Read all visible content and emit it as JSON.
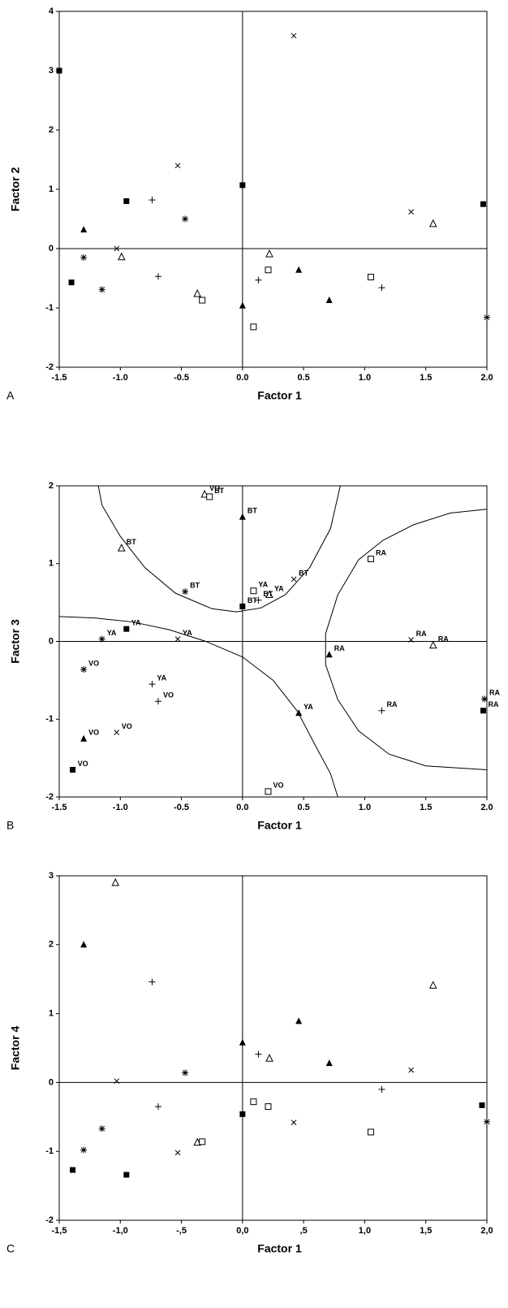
{
  "chart_data": [
    {
      "type": "scatter",
      "panel": "A",
      "xlabel": "Factor 1",
      "ylabel": "Factor 2",
      "xlim": [
        -1.5,
        2.0
      ],
      "ylim": [
        -2,
        4
      ],
      "xticks": [
        -1.5,
        {
          "value": -1.0,
          "label": "-1.0"
        },
        -0.5,
        {
          "value": 0.0,
          "label": "0.0"
        },
        0.5,
        {
          "value": 1.0,
          "label": "1.0"
        },
        1.5,
        {
          "value": 2.0,
          "label": "2.0"
        }
      ],
      "yticks": [
        -2,
        -1,
        0,
        1,
        2,
        3,
        4
      ],
      "series": [
        {
          "marker": "filled-square",
          "color": "#000000",
          "x": [
            -1.5,
            -0.95,
            -1.4,
            0,
            1.97
          ],
          "values": [
            3.0,
            0.8,
            -0.57,
            1.07,
            0.75
          ]
        },
        {
          "marker": "cross",
          "color": "#000000",
          "x": [
            0.42,
            -0.53,
            -1.03,
            1.38
          ],
          "values": [
            3.59,
            1.4,
            0.0,
            0.62
          ]
        },
        {
          "marker": "filled-triangle",
          "color": "#000000",
          "x": [
            -1.3,
            0,
            0.46,
            0.71
          ],
          "values": [
            0.32,
            -0.96,
            -0.36,
            -0.87
          ]
        },
        {
          "marker": "open-triangle",
          "color": "#000000",
          "x": [
            -0.99,
            -0.37,
            0.22,
            1.56
          ],
          "values": [
            -0.14,
            -0.76,
            -0.09,
            0.42
          ]
        },
        {
          "marker": "open-square",
          "color": "#000000",
          "x": [
            -0.33,
            0.21,
            0.09,
            1.05
          ],
          "values": [
            -0.87,
            -0.36,
            -1.32,
            -0.48
          ]
        },
        {
          "marker": "plus",
          "color": "#000000",
          "x": [
            -0.74,
            -0.69,
            0.13,
            1.14
          ],
          "values": [
            0.82,
            -0.47,
            -0.53,
            -0.66
          ]
        },
        {
          "marker": "asterisk",
          "color": "#000000",
          "x": [
            -1.3,
            -1.15,
            -0.47,
            2.0
          ],
          "values": [
            -0.15,
            -0.69,
            0.5,
            -1.16
          ]
        }
      ]
    },
    {
      "type": "scatter",
      "panel": "B",
      "xlabel": "Factor 1",
      "ylabel": "Factor 3",
      "xlim": [
        -1.5,
        2.0
      ],
      "ylim": [
        -2,
        2
      ],
      "xticks": [
        -1.5,
        {
          "value": -1.0,
          "label": "-1.0"
        },
        -0.5,
        {
          "value": 0.0,
          "label": "0.0"
        },
        0.5,
        {
          "value": 1.0,
          "label": "1.0"
        },
        1.5,
        {
          "value": 2.0,
          "label": "2.0"
        }
      ],
      "yticks": [
        -2,
        -1,
        0,
        1,
        2
      ],
      "series": [
        {
          "marker": "filled-square",
          "color": "#000000",
          "x": [
            -0.95,
            -1.39,
            0,
            1.97
          ],
          "values": [
            0.16,
            -1.65,
            0.45,
            -0.89
          ],
          "labels": [
            "YA",
            "VO",
            "BT",
            "RA"
          ]
        },
        {
          "marker": "cross",
          "color": "#000000",
          "x": [
            -1.03,
            -0.53,
            0.42,
            1.38
          ],
          "values": [
            -1.17,
            0.03,
            0.8,
            0.02
          ],
          "labels": [
            "VO",
            "YA",
            "BT",
            "RA"
          ]
        },
        {
          "marker": "filled-triangle",
          "color": "#000000",
          "x": [
            -1.3,
            0,
            0.46,
            0.71
          ],
          "values": [
            -1.25,
            1.6,
            -0.92,
            -0.17
          ],
          "labels": [
            "VO",
            "BT",
            "YA",
            "RA"
          ]
        },
        {
          "marker": "open-triangle",
          "color": "#000000",
          "x": [
            -0.99,
            -0.31,
            0.22,
            1.56
          ],
          "values": [
            1.2,
            1.89,
            0.6,
            -0.05
          ],
          "labels": [
            "BT",
            "VO",
            "YA",
            "RA"
          ]
        },
        {
          "marker": "open-square",
          "color": "#000000",
          "x": [
            -0.27,
            0.09,
            0.21,
            1.05
          ],
          "values": [
            1.86,
            0.65,
            -1.93,
            1.06
          ],
          "labels": [
            "BT",
            "YA",
            "VO",
            "RA"
          ]
        },
        {
          "marker": "plus",
          "color": "#000000",
          "x": [
            -0.74,
            -0.69,
            0.13,
            1.14
          ],
          "values": [
            -0.55,
            -0.77,
            0.53,
            -0.89
          ],
          "labels": [
            "YA",
            "VO",
            "BT",
            "RA"
          ]
        },
        {
          "marker": "asterisk",
          "color": "#000000",
          "x": [
            -1.15,
            -1.3,
            -0.47,
            1.98
          ],
          "values": [
            0.03,
            -0.36,
            0.64,
            -0.74
          ],
          "labels": [
            "YA",
            "VO",
            "BT",
            "RA"
          ]
        }
      ]
    },
    {
      "type": "scatter",
      "panel": "C",
      "xlabel": "Factor 1",
      "ylabel": "Factor 4",
      "xlim": [
        -1.5,
        2.0
      ],
      "ylim": [
        -2,
        3
      ],
      "xticks": [
        {
          "value": -1.5,
          "label": "-1,5"
        },
        {
          "value": -1.0,
          "label": "-1,0"
        },
        {
          "value": -0.5,
          "label": "-,5"
        },
        {
          "value": 0.0,
          "label": "0,0"
        },
        {
          "value": 0.5,
          "label": ",5"
        },
        {
          "value": 1.0,
          "label": "1,0"
        },
        {
          "value": 1.5,
          "label": "1,5"
        },
        {
          "value": 2.0,
          "label": "2,0"
        }
      ],
      "yticks": [
        -2,
        -1,
        0,
        1,
        2,
        3
      ],
      "series": [
        {
          "marker": "filled-square",
          "color": "#000000",
          "x": [
            -1.39,
            -0.95,
            0,
            1.96
          ],
          "values": [
            -1.27,
            -1.34,
            -0.46,
            -0.33
          ]
        },
        {
          "marker": "cross",
          "color": "#000000",
          "x": [
            -1.03,
            -0.53,
            0.42,
            1.38
          ],
          "values": [
            0.02,
            -1.02,
            -0.58,
            0.18
          ]
        },
        {
          "marker": "filled-triangle",
          "color": "#000000",
          "x": [
            -1.3,
            0,
            0.46,
            0.71
          ],
          "values": [
            2.0,
            0.58,
            0.89,
            0.28
          ]
        },
        {
          "marker": "open-triangle",
          "color": "#000000",
          "x": [
            -1.04,
            -0.37,
            0.22,
            1.56
          ],
          "values": [
            2.9,
            -0.87,
            0.35,
            1.41
          ]
        },
        {
          "marker": "open-square",
          "color": "#000000",
          "x": [
            -0.33,
            0.09,
            0.21,
            1.05
          ],
          "values": [
            -0.86,
            -0.28,
            -0.35,
            -0.72
          ]
        },
        {
          "marker": "plus",
          "color": "#000000",
          "x": [
            -0.74,
            -0.69,
            0.13,
            1.14
          ],
          "values": [
            1.46,
            -0.35,
            0.41,
            -0.1
          ]
        },
        {
          "marker": "asterisk",
          "color": "#000000",
          "x": [
            -1.3,
            -1.15,
            -0.47,
            2.0
          ],
          "values": [
            -0.98,
            -0.67,
            0.14,
            -0.57
          ]
        }
      ]
    }
  ]
}
